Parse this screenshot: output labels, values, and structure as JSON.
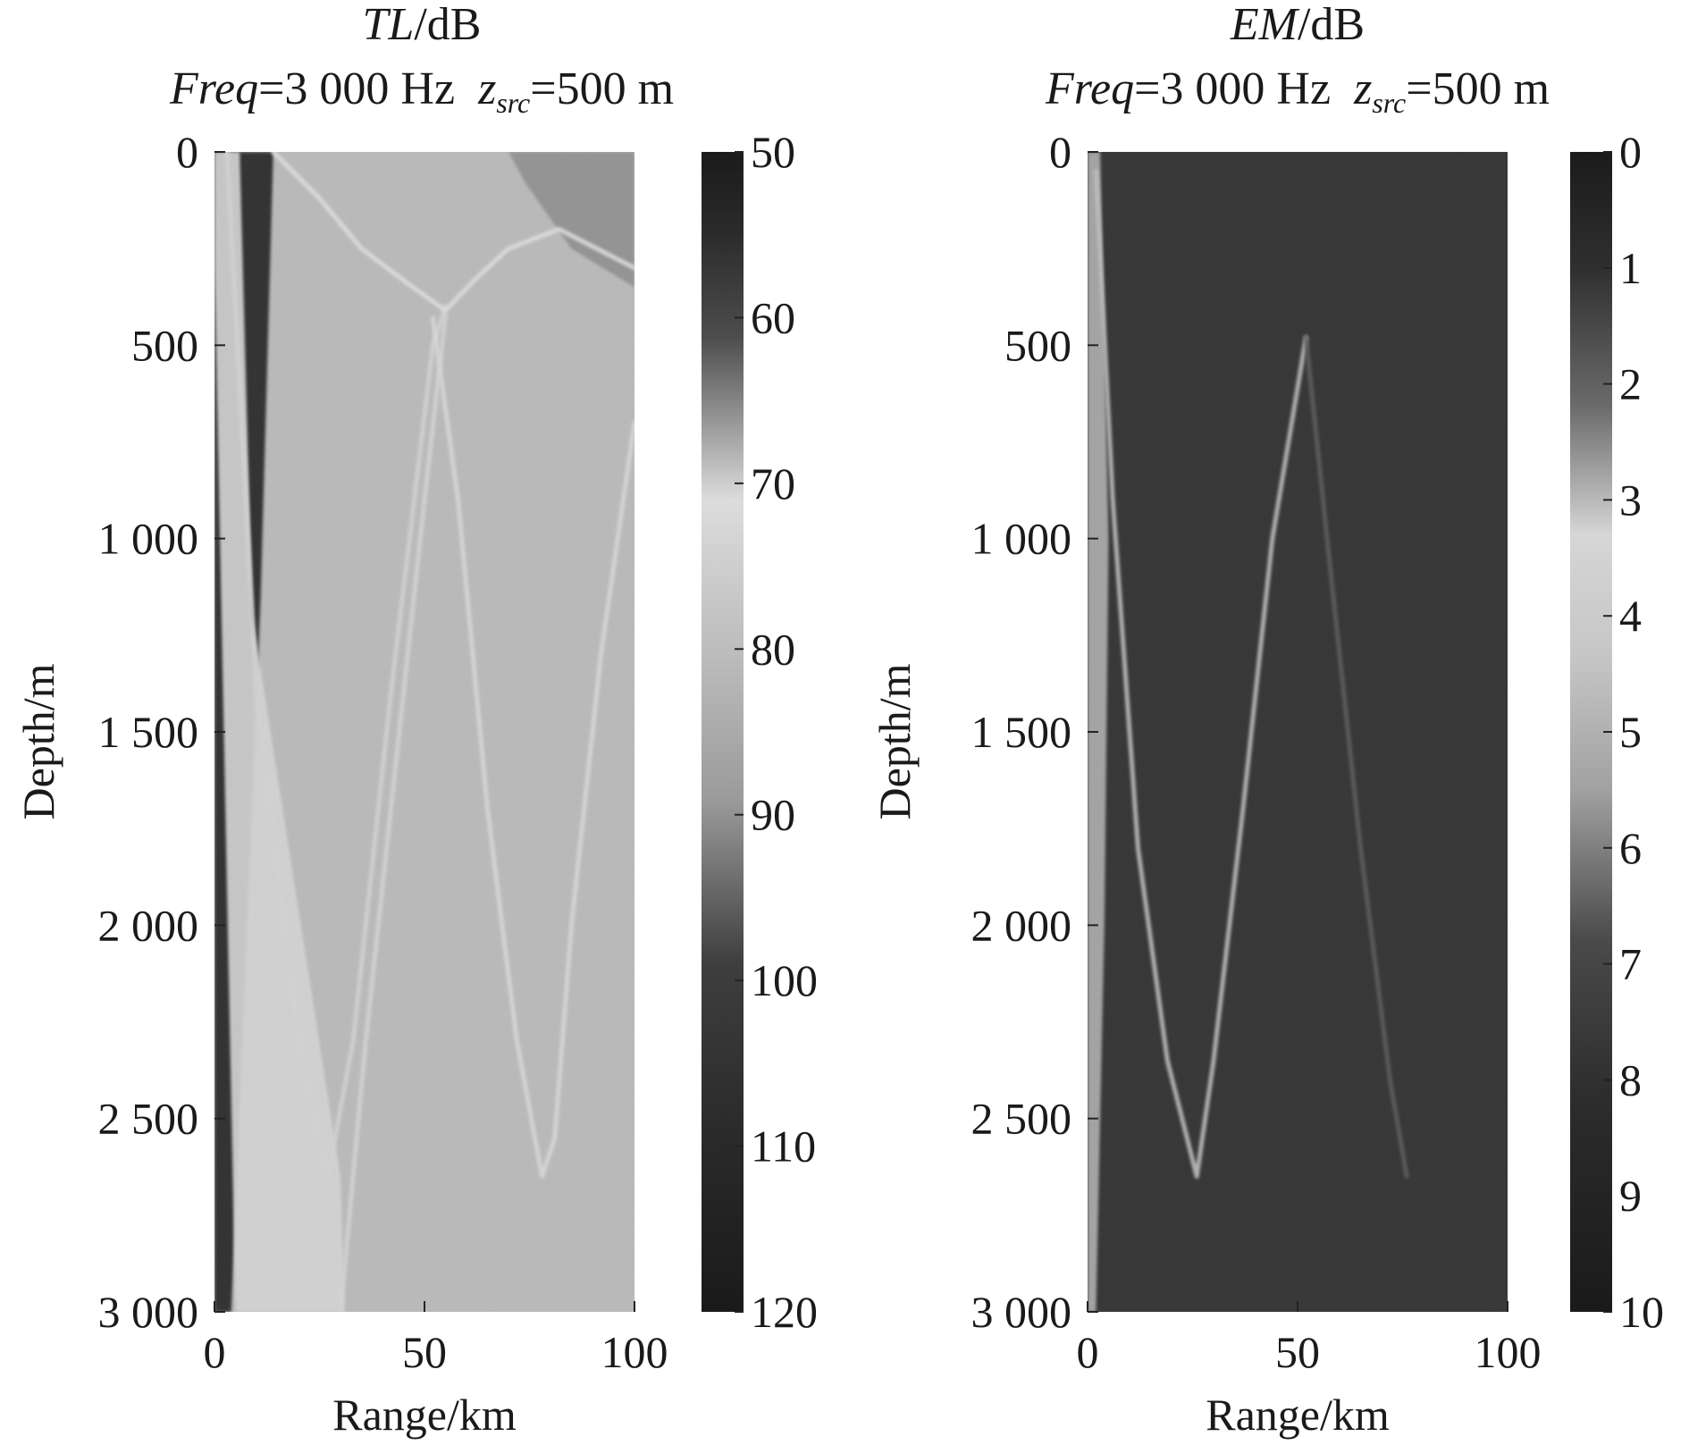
{
  "chart_data": [
    {
      "type": "heatmap",
      "panel": "left",
      "title": {
        "quantity": "TL",
        "unit_suffix": "/dB",
        "freq_label": "Freq",
        "freq_value": "=3 000 Hz",
        "src_main": "z",
        "src_sub": "src",
        "src_value": "=500 m"
      },
      "xlabel": "Range/km",
      "ylabel": "Depth/m",
      "xlim": [
        0,
        100
      ],
      "ylim": [
        0,
        3000
      ],
      "xticks": [
        0,
        50,
        100
      ],
      "xtick_labels": [
        "0",
        "50",
        "100"
      ],
      "yticks": [
        0,
        500,
        1000,
        1500,
        2000,
        2500,
        3000
      ],
      "ytick_labels": [
        "0",
        "500",
        "1 000",
        "1 500",
        "2 000",
        "2 500",
        "3 000"
      ],
      "colorbar": {
        "range": [
          50,
          120
        ],
        "ticks": [
          50,
          60,
          70,
          80,
          90,
          100,
          110,
          120
        ],
        "tick_labels": [
          "50",
          "60",
          "70",
          "80",
          "90",
          "100",
          "110",
          "120"
        ],
        "direction": "top-to-bottom"
      },
      "background_value": 86,
      "features": [
        {
          "name": "direct-path-shadow-zone",
          "points": [
            [
              3,
              0
            ],
            [
              14,
              0
            ],
            [
              11,
              1150
            ],
            [
              4,
              3000
            ],
            [
              0,
              3000
            ],
            [
              0,
              0
            ]
          ],
          "value": 119
        },
        {
          "name": "surface-corner-zone",
          "points": [
            [
              70,
              0
            ],
            [
              100,
              0
            ],
            [
              100,
              350
            ],
            [
              85,
              250
            ],
            [
              74,
              80
            ]
          ],
          "value": 95
        },
        {
          "name": "near-field-band",
          "points": [
            [
              0,
              0
            ],
            [
              6,
              0
            ],
            [
              9,
              1200
            ],
            [
              30,
              2650
            ],
            [
              31,
              3000
            ],
            [
              5,
              3000
            ],
            [
              0,
              300
            ]
          ],
          "value": 80
        },
        {
          "name": "first-convergence-curve",
          "points": [
            [
              3,
              0
            ],
            [
              10,
              1400
            ],
            [
              20,
              2300
            ],
            [
              27,
              2650
            ],
            [
              33,
              2300
            ],
            [
              42,
              1400
            ],
            [
              52,
              500
            ],
            [
              55,
              400
            ]
          ],
          "value": 73
        },
        {
          "name": "upper-reflected-arc",
          "points": [
            [
              14,
              0
            ],
            [
              25,
              120
            ],
            [
              35,
              250
            ],
            [
              46,
              340
            ],
            [
              55,
              410
            ],
            [
              62,
              330
            ],
            [
              70,
              250
            ],
            [
              82,
              200
            ],
            [
              100,
              300
            ]
          ],
          "value": 78
        },
        {
          "name": "second-convergence-curve",
          "points": [
            [
              52,
              430
            ],
            [
              58,
              900
            ],
            [
              65,
              1700
            ],
            [
              72,
              2300
            ],
            [
              78,
              2650
            ],
            [
              81,
              2550
            ],
            [
              85,
              2000
            ],
            [
              92,
              1300
            ],
            [
              100,
              700
            ]
          ],
          "value": 74
        },
        {
          "name": "third-pass-curve",
          "points": [
            [
              55,
              420
            ],
            [
              50,
              900
            ],
            [
              42,
              1700
            ],
            [
              36,
              2300
            ],
            [
              33,
              2650
            ],
            [
              30,
              3000
            ]
          ],
          "value": 80
        }
      ]
    },
    {
      "type": "heatmap",
      "panel": "right",
      "title": {
        "quantity": "EM",
        "unit_suffix": "/dB",
        "freq_label": "Freq",
        "freq_value": "=3 000 Hz",
        "src_main": "z",
        "src_sub": "src",
        "src_value": "=500 m"
      },
      "xlabel": "Range/km",
      "ylabel": "Depth/m",
      "xlim": [
        0,
        100
      ],
      "ylim": [
        0,
        3000
      ],
      "xticks": [
        0,
        50,
        100
      ],
      "xtick_labels": [
        "0",
        "50",
        "100"
      ],
      "yticks": [
        0,
        500,
        1000,
        1500,
        2000,
        2500,
        3000
      ],
      "ytick_labels": [
        "0",
        "500",
        "1 000",
        "1 500",
        "2 000",
        "2 500",
        "3 000"
      ],
      "colorbar": {
        "range": [
          0,
          10
        ],
        "ticks": [
          0,
          1,
          2,
          3,
          4,
          5,
          6,
          7,
          8,
          9,
          10
        ],
        "tick_labels": [
          "0",
          "1",
          "2",
          "3",
          "4",
          "5",
          "6",
          "7",
          "8",
          "9",
          "10"
        ],
        "direction": "top-to-bottom"
      },
      "background_value": 9.2,
      "features": [
        {
          "name": "near-field-noise-band",
          "points": [
            [
              0,
              0
            ],
            [
              3,
              0
            ],
            [
              5,
              1000
            ],
            [
              4,
              2000
            ],
            [
              2,
              3000
            ],
            [
              0,
              3000
            ]
          ],
          "value": 5.5
        },
        {
          "name": "first-convergence-curve",
          "points": [
            [
              2,
              50
            ],
            [
              6,
              900
            ],
            [
              12,
              1800
            ],
            [
              19,
              2350
            ],
            [
              26,
              2650
            ],
            [
              30,
              2350
            ],
            [
              37,
              1700
            ],
            [
              44,
              1000
            ],
            [
              52,
              480
            ]
          ],
          "value": 5.0
        },
        {
          "name": "second-curve-faint",
          "points": [
            [
              52,
              480
            ],
            [
              58,
              1100
            ],
            [
              65,
              1800
            ],
            [
              72,
              2400
            ],
            [
              76,
              2650
            ]
          ],
          "value": 8.0
        }
      ]
    }
  ]
}
